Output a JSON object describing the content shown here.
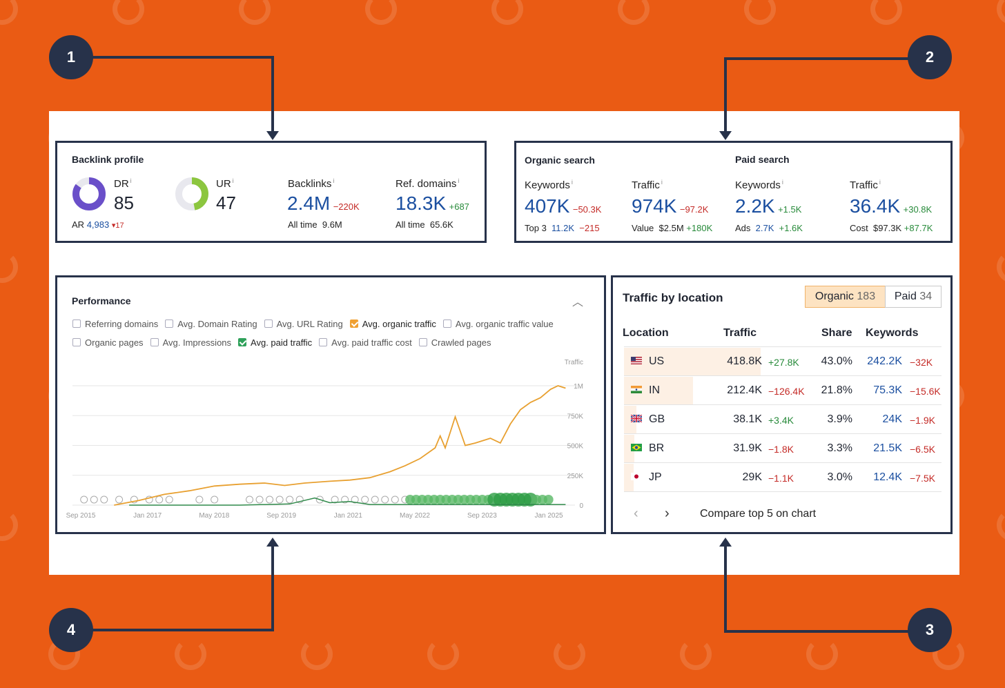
{
  "backlink_profile": {
    "title": "Backlink profile",
    "dr_label": "DR",
    "dr_value": "85",
    "dr_fraction": 0.85,
    "ar_label": "AR",
    "ar_value": "4,983",
    "ar_change": "▾17",
    "ur_label": "UR",
    "ur_value": "47",
    "ur_fraction": 0.47,
    "backlinks_label": "Backlinks",
    "backlinks_value": "2.4M",
    "backlinks_change": "−220K",
    "backlinks_alltime_label": "All time",
    "backlinks_alltime": "9.6M",
    "refdomains_label": "Ref. domains",
    "refdomains_value": "18.3K",
    "refdomains_change": "+687",
    "refdomains_alltime_label": "All time",
    "refdomains_alltime": "65.6K",
    "info": "i"
  },
  "organic_search": {
    "title": "Organic search",
    "keywords_label": "Keywords",
    "keywords_value": "407K",
    "keywords_change": "−50.3K",
    "top3_label": "Top 3",
    "top3_value": "11.2K",
    "top3_change": "−215",
    "traffic_label": "Traffic",
    "traffic_value": "974K",
    "traffic_change": "−97.2K",
    "value_label": "Value",
    "value_value": "$2.5M",
    "value_change": "+180K"
  },
  "paid_search": {
    "title": "Paid search",
    "keywords_label": "Keywords",
    "keywords_value": "2.2K",
    "keywords_change": "+1.5K",
    "ads_label": "Ads",
    "ads_value": "2.7K",
    "ads_change": "+1.6K",
    "traffic_label": "Traffic",
    "traffic_value": "36.4K",
    "traffic_change": "+30.8K",
    "cost_label": "Cost",
    "cost_value": "$97.3K",
    "cost_change": "+87.7K"
  },
  "performance": {
    "title": "Performance",
    "options_row1": [
      {
        "label": "Referring domains",
        "checked": false
      },
      {
        "label": "Avg. Domain Rating",
        "checked": false
      },
      {
        "label": "Avg. URL Rating",
        "checked": false
      },
      {
        "label": "Avg. organic traffic",
        "checked": "orange"
      },
      {
        "label": "Avg. organic traffic value",
        "checked": false
      }
    ],
    "options_row2": [
      {
        "label": "Organic pages",
        "checked": false
      },
      {
        "label": "Avg. Impressions",
        "checked": false
      },
      {
        "label": "Avg. paid traffic",
        "checked": "green"
      },
      {
        "label": "Avg. paid traffic cost",
        "checked": false
      },
      {
        "label": "Crawled pages",
        "checked": false
      }
    ]
  },
  "chart_data": {
    "type": "line",
    "ylabel": "Traffic",
    "yticks": [
      "1M",
      "750K",
      "500K",
      "250K",
      "0"
    ],
    "ylim": [
      0,
      1000000
    ],
    "xticks": [
      "Sep 2015",
      "Jan 2017",
      "May 2018",
      "Sep 2019",
      "Jan 2021",
      "May 2022",
      "Sep 2023",
      "Jan 2025"
    ],
    "grid": true,
    "series": [
      {
        "color": "#e8a030",
        "points": [
          [
            2016.5,
            0
          ],
          [
            2017.0,
            40000
          ],
          [
            2017.5,
            90000
          ],
          [
            2018.0,
            120000
          ],
          [
            2018.5,
            160000
          ],
          [
            2019.0,
            175000
          ],
          [
            2019.5,
            185000
          ],
          [
            2019.9,
            165000
          ],
          [
            2020.3,
            185000
          ],
          [
            2020.8,
            200000
          ],
          [
            2021.2,
            210000
          ],
          [
            2021.6,
            230000
          ],
          [
            2022.0,
            280000
          ],
          [
            2022.3,
            330000
          ],
          [
            2022.6,
            390000
          ],
          [
            2022.9,
            480000
          ],
          [
            2023.0,
            580000
          ],
          [
            2023.1,
            480000
          ],
          [
            2023.3,
            740000
          ],
          [
            2023.5,
            500000
          ],
          [
            2023.7,
            520000
          ],
          [
            2024.0,
            560000
          ],
          [
            2024.2,
            520000
          ],
          [
            2024.4,
            680000
          ],
          [
            2024.6,
            800000
          ],
          [
            2024.8,
            860000
          ],
          [
            2025.0,
            900000
          ],
          [
            2025.2,
            970000
          ],
          [
            2025.35,
            1000000
          ],
          [
            2025.5,
            980000
          ]
        ]
      },
      {
        "color": "#2f8a4a",
        "points": [
          [
            2016.8,
            0
          ],
          [
            2018.0,
            0
          ],
          [
            2019.0,
            0
          ],
          [
            2020.0,
            10000
          ],
          [
            2020.5,
            60000
          ],
          [
            2020.8,
            20000
          ],
          [
            2021.2,
            30000
          ],
          [
            2021.6,
            5000
          ],
          [
            2022.5,
            5000
          ],
          [
            2023.5,
            5000
          ],
          [
            2024.5,
            5000
          ],
          [
            2025.5,
            5000
          ]
        ]
      }
    ]
  },
  "traffic_location": {
    "title": "Traffic by location",
    "tab_organic_label": "Organic",
    "tab_organic_count": "183",
    "tab_paid_label": "Paid",
    "tab_paid_count": "34",
    "headers": [
      "Location",
      "Traffic",
      "Share",
      "Keywords"
    ],
    "rows": [
      {
        "flag": "us-flag",
        "code": "US",
        "traffic": "418.8K",
        "traffic_change": "+27.8K",
        "share": "43.0%",
        "share_value": 43.0,
        "keywords": "242.2K",
        "keywords_change": "−32K"
      },
      {
        "flag": "in-flag",
        "code": "IN",
        "traffic": "212.4K",
        "traffic_change": "−126.4K",
        "share": "21.8%",
        "share_value": 21.8,
        "keywords": "75.3K",
        "keywords_change": "−15.6K"
      },
      {
        "flag": "gb-flag",
        "code": "GB",
        "traffic": "38.1K",
        "traffic_change": "+3.4K",
        "share": "3.9%",
        "share_value": 3.9,
        "keywords": "24K",
        "keywords_change": "−1.9K"
      },
      {
        "flag": "br-flag",
        "code": "BR",
        "traffic": "31.9K",
        "traffic_change": "−1.8K",
        "share": "3.3%",
        "share_value": 3.3,
        "keywords": "21.5K",
        "keywords_change": "−6.5K"
      },
      {
        "flag": "jp-flag",
        "code": "JP",
        "traffic": "29K",
        "traffic_change": "−1.1K",
        "share": "3.0%",
        "share_value": 3.0,
        "keywords": "12.4K",
        "keywords_change": "−7.5K"
      }
    ],
    "compare_label": "Compare top 5 on chart"
  },
  "badges": [
    "1",
    "2",
    "3",
    "4"
  ]
}
